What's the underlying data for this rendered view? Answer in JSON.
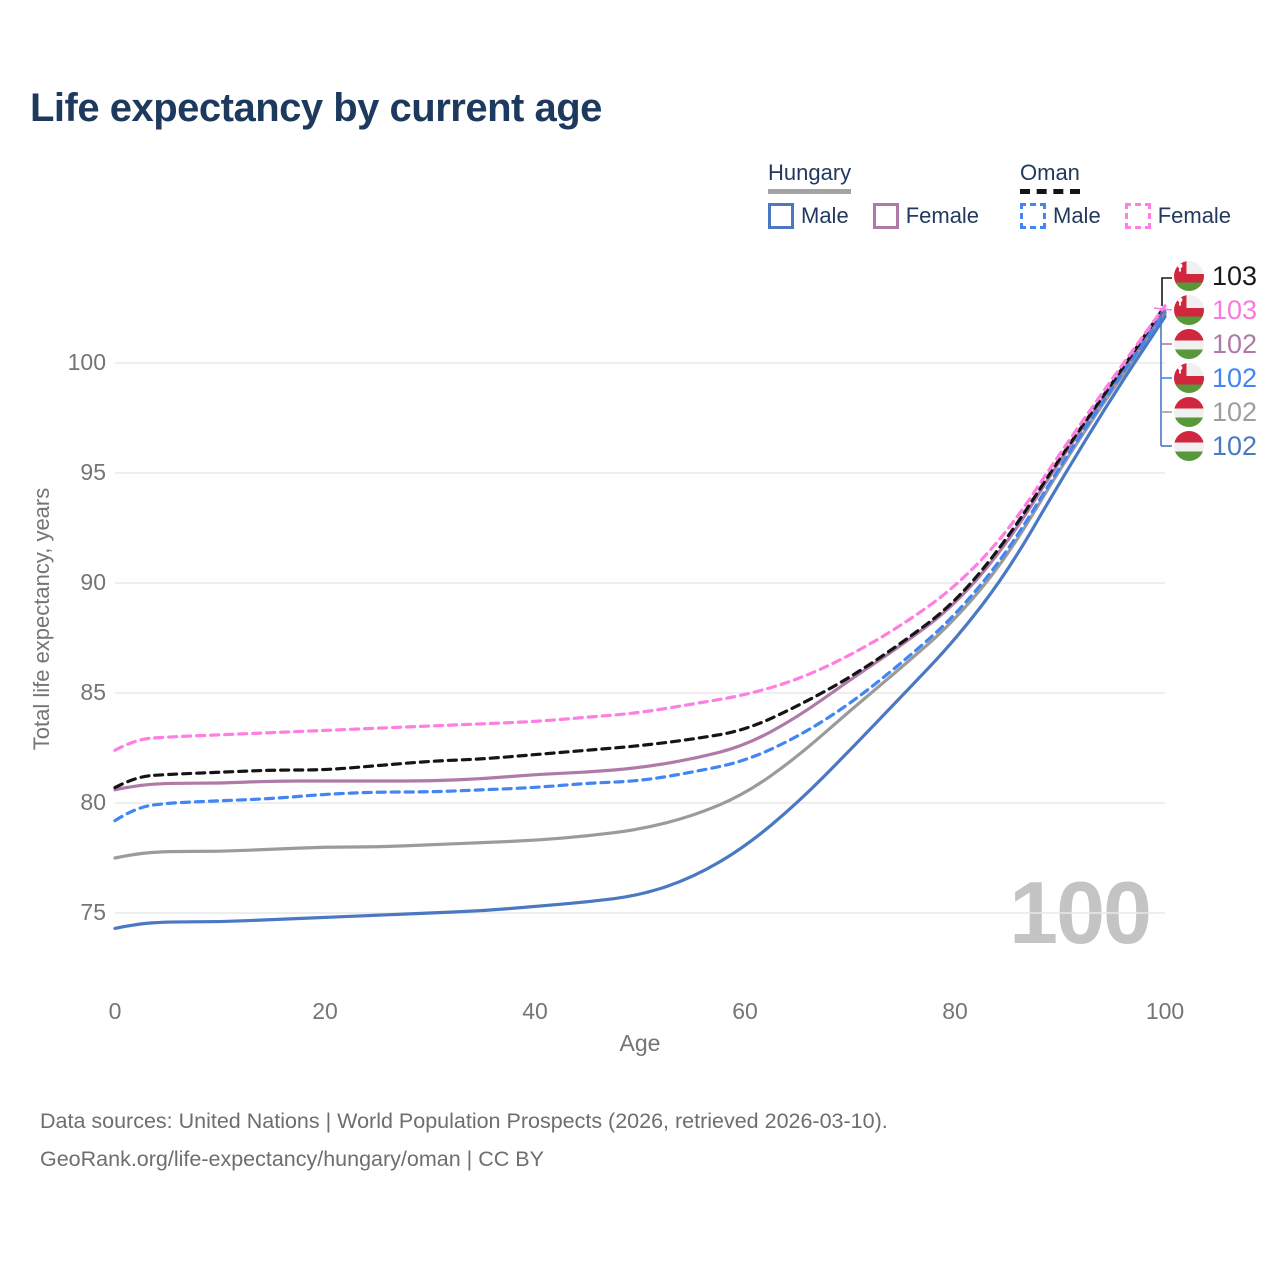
{
  "title": "Life expectancy by current age",
  "legend": {
    "groups": [
      {
        "label": "Hungary",
        "line_style": "solid",
        "underline_color": "#a3a3a3",
        "items": [
          {
            "label": "Male",
            "color": "#4a78c2"
          },
          {
            "label": "Female",
            "color": "#b07aa8"
          }
        ]
      },
      {
        "label": "Oman",
        "line_style": "dashed",
        "underline_color": "#141414",
        "items": [
          {
            "label": "Male",
            "color": "#4285f4"
          },
          {
            "label": "Female",
            "color": "#fe7ee2"
          }
        ]
      }
    ]
  },
  "y_axis": {
    "label": "Total life expectancy, years",
    "tick_labels": [
      "100",
      "95",
      "90",
      "85",
      "80",
      "75"
    ]
  },
  "x_axis": {
    "label": "Age",
    "tick_labels": [
      "0",
      "20",
      "40",
      "60",
      "80",
      "100"
    ]
  },
  "watermark": "100",
  "end_labels": [
    {
      "flag": "oman-flag",
      "value": "103",
      "color": "#1a1a1a",
      "series": "Oman Total"
    },
    {
      "flag": "oman-flag",
      "value": "103",
      "color": "#f87ae0",
      "series": "Oman Female"
    },
    {
      "flag": "hungary-flag",
      "value": "102",
      "color": "#b07aa8",
      "series": "Hungary Female"
    },
    {
      "flag": "oman-flag",
      "value": "102",
      "color": "#4285f4",
      "series": "Oman Male"
    },
    {
      "flag": "hungary-flag",
      "value": "102",
      "color": "#9e9e9e",
      "series": "Hungary Total"
    },
    {
      "flag": "hungary-flag",
      "value": "102",
      "color": "#4a78c2",
      "series": "Hungary Male"
    }
  ],
  "footer": {
    "line1": "Data sources: United Nations | World Population Prospects (2026, retrieved 2026-03-10).",
    "line2": "GeoRank.org/life-expectancy/hungary/oman | CC BY"
  },
  "chart_data": {
    "type": "line",
    "title": "Life expectancy by current age",
    "xlabel": "Age",
    "ylabel": "Total life expectancy, years",
    "xlim": [
      0,
      100
    ],
    "ylim": [
      73,
      103.5
    ],
    "grid": "horizontal",
    "grid_values": [
      75,
      80,
      85,
      90,
      95,
      100
    ],
    "legend_position": "top-right",
    "x": [
      0,
      2,
      5,
      10,
      15,
      20,
      25,
      30,
      35,
      40,
      45,
      50,
      55,
      60,
      65,
      70,
      75,
      80,
      85,
      90,
      95,
      100
    ],
    "series": [
      {
        "name": "Hungary Total",
        "color": "#9b9b9b",
        "dashed": false,
        "values": [
          77.5,
          77.7,
          77.8,
          77.8,
          77.9,
          78.0,
          78.0,
          78.1,
          78.2,
          78.3,
          78.5,
          78.8,
          79.4,
          80.4,
          82.1,
          84.2,
          86.2,
          88.3,
          91.2,
          95.2,
          98.8,
          102.2
        ]
      },
      {
        "name": "Hungary Male",
        "color": "#4a78c2",
        "dashed": false,
        "values": [
          74.3,
          74.5,
          74.6,
          74.6,
          74.7,
          74.8,
          74.9,
          75.0,
          75.1,
          75.3,
          75.5,
          75.8,
          76.6,
          78.0,
          80.0,
          82.4,
          84.9,
          87.4,
          90.5,
          94.6,
          98.5,
          102.1
        ]
      },
      {
        "name": "Hungary Female",
        "color": "#b07aa8",
        "dashed": false,
        "values": [
          80.6,
          80.8,
          80.9,
          80.9,
          81.0,
          81.0,
          81.0,
          81.0,
          81.1,
          81.3,
          81.4,
          81.6,
          82.0,
          82.6,
          83.9,
          85.6,
          87.2,
          89.0,
          91.8,
          95.6,
          99.0,
          102.4
        ]
      },
      {
        "name": "Oman Male",
        "color": "#4285f4",
        "dashed": true,
        "values": [
          79.2,
          79.8,
          80.0,
          80.1,
          80.2,
          80.4,
          80.5,
          80.5,
          80.6,
          80.7,
          80.9,
          81.0,
          81.4,
          81.9,
          83.0,
          84.5,
          86.4,
          88.5,
          91.4,
          95.3,
          98.9,
          102.3
        ]
      },
      {
        "name": "Oman Total",
        "color": "#151515",
        "dashed": true,
        "values": [
          80.7,
          81.2,
          81.3,
          81.4,
          81.5,
          81.5,
          81.7,
          81.9,
          82.0,
          82.2,
          82.4,
          82.6,
          82.9,
          83.3,
          84.4,
          85.7,
          87.3,
          89.1,
          92.0,
          95.7,
          99.1,
          102.6
        ]
      },
      {
        "name": "Oman Female",
        "color": "#fe7ee2",
        "dashed": true,
        "values": [
          82.4,
          82.9,
          83.0,
          83.1,
          83.2,
          83.3,
          83.4,
          83.5,
          83.6,
          83.7,
          83.9,
          84.1,
          84.5,
          84.9,
          85.6,
          86.7,
          88.1,
          89.8,
          92.3,
          95.9,
          99.3,
          102.6
        ]
      }
    ]
  }
}
